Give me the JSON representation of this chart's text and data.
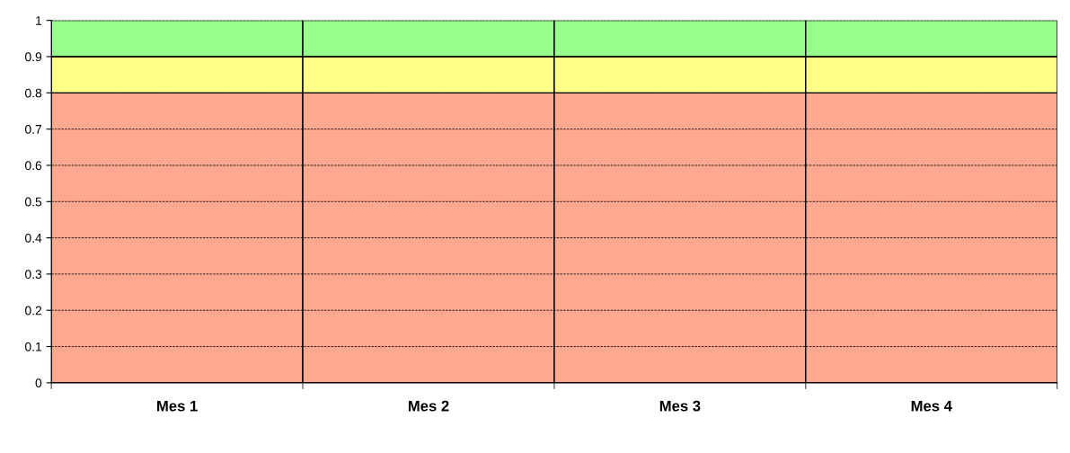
{
  "chart_data": {
    "type": "bar",
    "stacked": true,
    "categories": [
      "Mes 1",
      "Mes 2",
      "Mes 3",
      "Mes 4"
    ],
    "series": [
      {
        "color": "#ffa890",
        "values": [
          0.8,
          0.8,
          0.8,
          0.8
        ]
      },
      {
        "color": "#ffff88",
        "values": [
          0.1,
          0.1,
          0.1,
          0.1
        ]
      },
      {
        "color": "#96fe8a",
        "values": [
          0.1,
          0.1,
          0.1,
          0.1
        ]
      }
    ],
    "ylim": [
      0,
      1
    ],
    "yticks": [
      0,
      0.1,
      0.2,
      0.3,
      0.4,
      0.5,
      0.6,
      0.7,
      0.8,
      0.9,
      1
    ],
    "grid": "y",
    "line_style": "dashed"
  }
}
